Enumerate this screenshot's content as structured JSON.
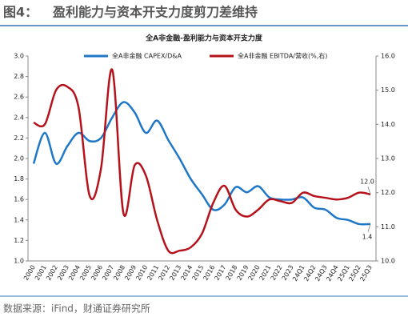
{
  "header": {
    "figure": "图4：",
    "title": "盈利能力与资本开支力度剪刀差维持"
  },
  "chart_data": {
    "type": "line",
    "title": "全A非金融-盈利能力与资本开支力度",
    "categories": [
      "2000",
      "2001",
      "2002",
      "2003",
      "2004",
      "2005",
      "2006",
      "2007",
      "2008",
      "2009",
      "2010",
      "2011",
      "2012",
      "2013",
      "2014",
      "2015",
      "2016",
      "2017",
      "2018",
      "2019",
      "2020",
      "2021",
      "2022",
      "2023",
      "24Q1",
      "24Q2",
      "24Q3",
      "24Q4",
      "25Q1",
      "25Q2",
      "25Q3"
    ],
    "series": [
      {
        "name": "全A非金融 CAPEX/D&A",
        "color": "#1f77c8",
        "values": [
          1.95,
          2.25,
          1.95,
          2.12,
          2.25,
          2.17,
          2.2,
          2.4,
          2.55,
          2.45,
          2.25,
          2.37,
          2.18,
          2.0,
          1.8,
          1.65,
          1.5,
          1.55,
          1.72,
          1.67,
          1.73,
          1.62,
          1.6,
          1.6,
          1.62,
          1.52,
          1.5,
          1.42,
          1.4,
          1.36,
          1.36
        ],
        "value_labels": [
          null,
          null,
          null,
          null,
          null,
          null,
          null,
          null,
          null,
          null,
          null,
          null,
          null,
          null,
          null,
          null,
          null,
          null,
          null,
          null,
          null,
          null,
          null,
          null,
          null,
          null,
          null,
          null,
          null,
          null,
          "1.4"
        ]
      },
      {
        "name": "全A非金融 EBITDA/营收(%,右)",
        "color": "#b5121b",
        "axis": "y2",
        "values": [
          14.05,
          14.0,
          15.0,
          15.1,
          14.5,
          11.9,
          12.7,
          15.6,
          11.4,
          12.8,
          12.5,
          11.2,
          10.3,
          10.3,
          10.4,
          10.8,
          11.7,
          12.2,
          11.5,
          11.3,
          11.5,
          11.8,
          11.75,
          11.7,
          12.0,
          11.9,
          11.85,
          11.8,
          11.85,
          12.0,
          11.95
        ],
        "value_labels": [
          null,
          null,
          null,
          null,
          null,
          null,
          null,
          null,
          null,
          null,
          null,
          null,
          null,
          null,
          null,
          null,
          null,
          null,
          null,
          null,
          null,
          null,
          null,
          null,
          null,
          null,
          null,
          null,
          null,
          null,
          "12.0"
        ]
      }
    ],
    "ylim": [
      1.0,
      3.0
    ],
    "yticks": [
      {
        "value": 1,
        "label": "1.0"
      },
      1.2,
      1.4,
      1.6,
      1.8,
      {
        "value": 2,
        "label": "2.0"
      },
      2.2,
      2.4,
      2.6,
      2.8,
      {
        "value": 3,
        "label": "3.0"
      }
    ],
    "y2lim": [
      10,
      16
    ],
    "y2ticks": [
      {
        "value": 10,
        "label": "10.0"
      },
      {
        "value": 11,
        "label": "11.0"
      },
      {
        "value": 12,
        "label": "12.0"
      },
      {
        "value": 13,
        "label": "13.0"
      },
      {
        "value": 14,
        "label": "14.0"
      },
      {
        "value": 15,
        "label": "15.0"
      },
      {
        "value": 16,
        "label": "16.0"
      }
    ],
    "legend": "top"
  },
  "footer": {
    "source": "数据来源：iFind，财通证券研究所"
  }
}
